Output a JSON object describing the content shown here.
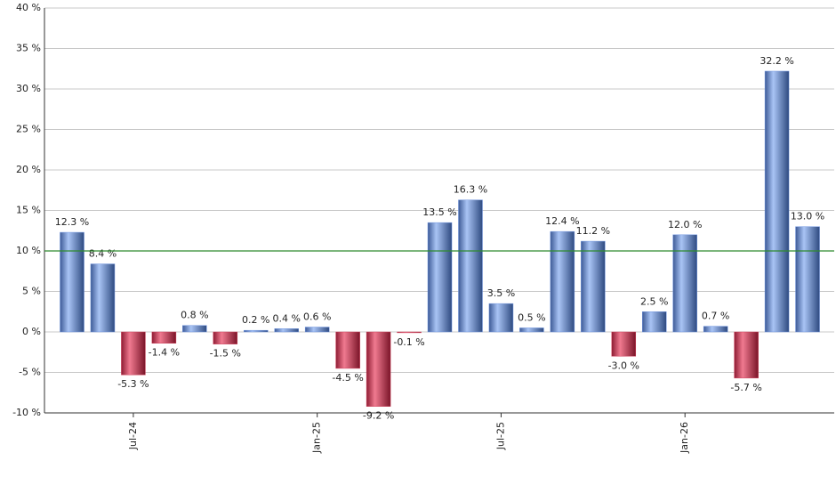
{
  "chart_data": {
    "type": "bar",
    "categories": [
      null,
      null,
      "Jul-24",
      null,
      null,
      null,
      null,
      null,
      "Jan-25",
      null,
      null,
      null,
      null,
      null,
      "Jul-25",
      null,
      null,
      null,
      null,
      null,
      "Jan-26",
      null,
      null,
      null,
      null
    ],
    "values": [
      12.3,
      8.4,
      -5.3,
      -1.4,
      0.8,
      -1.5,
      0.2,
      0.4,
      0.6,
      -4.5,
      -9.2,
      -0.1,
      13.5,
      16.3,
      3.5,
      0.5,
      12.4,
      11.2,
      -3.0,
      2.5,
      12.0,
      0.7,
      -5.7,
      32.2,
      13.0
    ],
    "value_labels": [
      "12.3 %",
      "8.4 %",
      "-5.3 %",
      "-1.4 %",
      "0.8 %",
      "-1.5 %",
      "0.2 %",
      "0.4 %",
      "0.6 %",
      "-4.5 %",
      "-9.2 %",
      "-0.1 %",
      "13.5 %",
      "16.3 %",
      "3.5 %",
      "0.5 %",
      "12.4 %",
      "11.2 %",
      "-3.0 %",
      "2.5 %",
      "12.0 %",
      "0.7 %",
      "-5.7 %",
      "32.2 %",
      "13.0 %"
    ],
    "positive_color": "#7095e0",
    "negative_color": "#d0405a",
    "reference_line": 10,
    "reference_color": "#2e8b2e",
    "ylim": [
      -10,
      40
    ],
    "yticks": [
      {
        "value": -10,
        "label": "-10 %"
      },
      {
        "value": -5,
        "label": "-5 %"
      },
      {
        "value": 0,
        "label": "0 %"
      },
      {
        "value": 5,
        "label": "5 %"
      },
      {
        "value": 10,
        "label": "10 %"
      },
      {
        "value": 15,
        "label": "15 %"
      },
      {
        "value": 20,
        "label": "20 %"
      },
      {
        "value": 25,
        "label": "25 %"
      },
      {
        "value": 30,
        "label": "30 %"
      },
      {
        "value": 35,
        "label": "35 %"
      },
      {
        "value": 40,
        "label": "40 %"
      }
    ],
    "grid": true
  }
}
